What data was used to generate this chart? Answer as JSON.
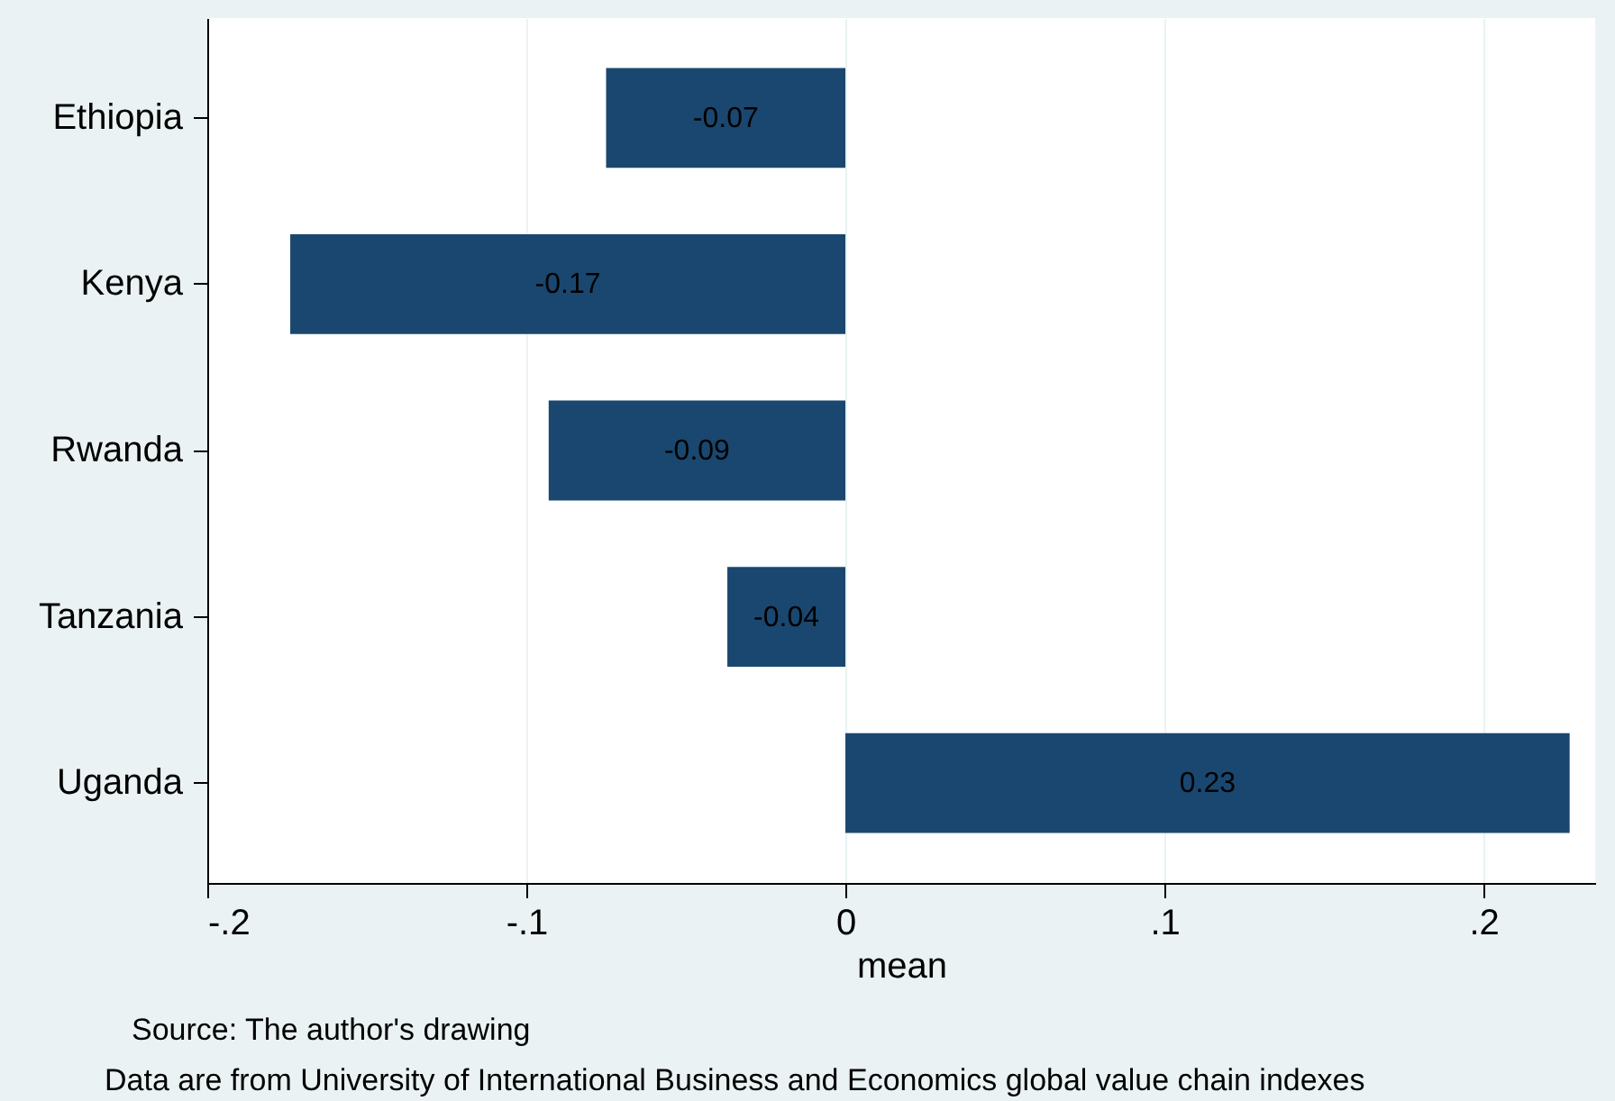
{
  "chart_data": {
    "type": "bar",
    "orientation": "horizontal",
    "categories": [
      "Ethiopia",
      "Kenya",
      "Rwanda",
      "Tanzania",
      "Uganda"
    ],
    "values": [
      -0.075,
      -0.174,
      -0.093,
      -0.037,
      0.227
    ],
    "value_labels": [
      "-0.07",
      "-0.17",
      "-0.09",
      "-0.04",
      "0.23"
    ],
    "color": "#1a476f",
    "xlabel": "mean",
    "xlim": [
      -0.2,
      0.235
    ],
    "xticks": [
      {
        "value": -0.2,
        "label": "-.2"
      },
      {
        "value": -0.1,
        "label": "-.1"
      },
      0,
      {
        "value": 0.1,
        "label": ".1"
      },
      {
        "value": 0.2,
        "label": ".2"
      }
    ],
    "grid": "x",
    "annotations": [
      "Source: The author's drawing",
      "Data are from University of International Business and Economics global value chain indexes"
    ]
  }
}
